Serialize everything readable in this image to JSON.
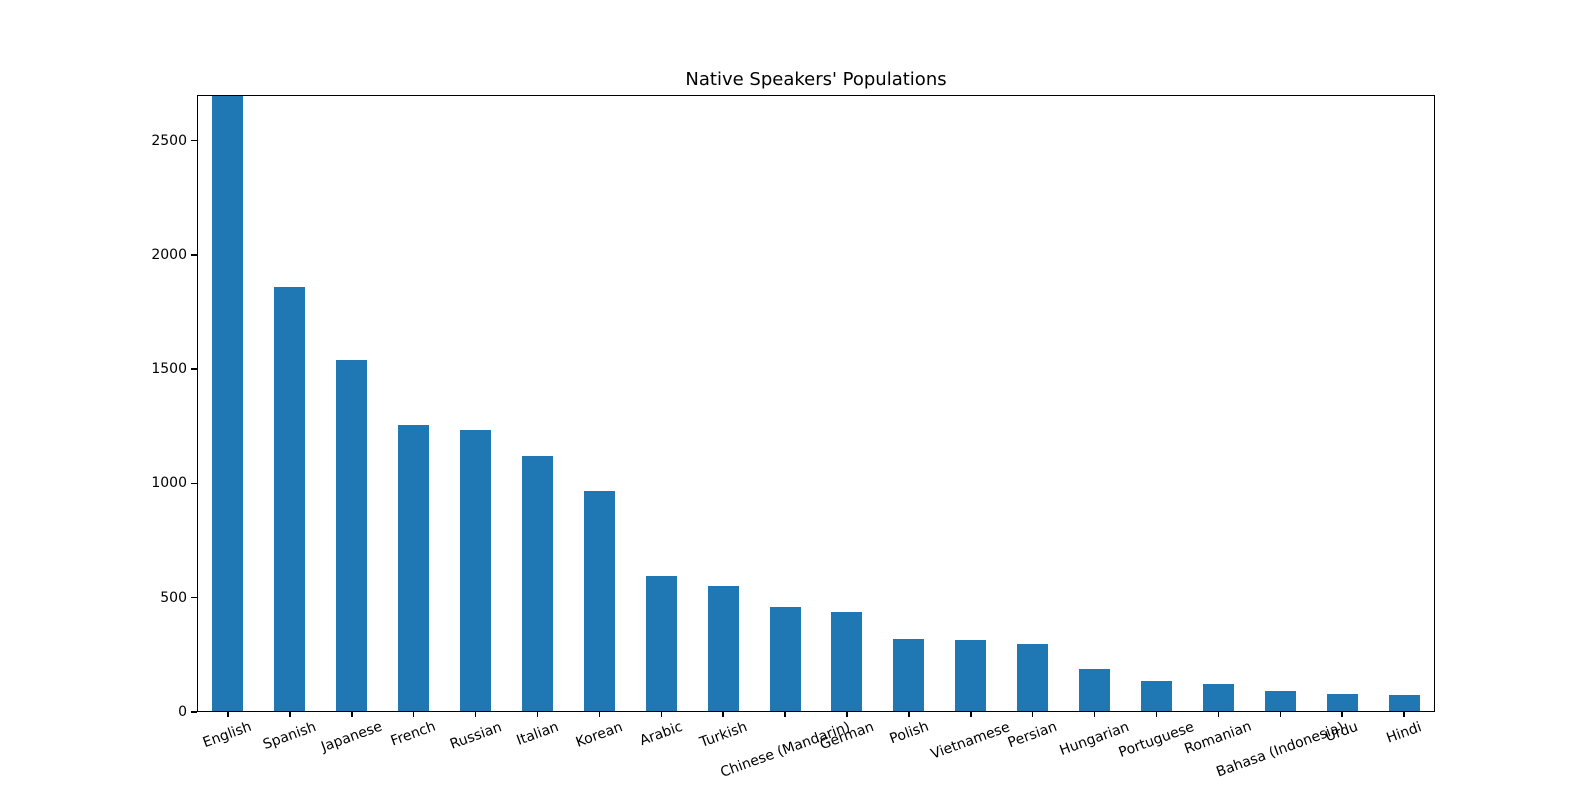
{
  "chart_data": {
    "type": "bar",
    "title": "Native Speakers' Populations",
    "categories": [
      "English",
      "Spanish",
      "Japanese",
      "French",
      "Russian",
      "Italian",
      "Korean",
      "Arabic",
      "Turkish",
      "Chinese (Mandarin)",
      "German",
      "Polish",
      "Vietnamese",
      "Persian",
      "Hungarian",
      "Portuguese",
      "Romanian",
      "Bahasa (Indonesia)",
      "Urdu",
      "Hindi"
    ],
    "values": [
      2700,
      1862,
      1540,
      1255,
      1236,
      1121,
      969,
      597,
      553,
      461,
      436,
      320,
      314,
      297,
      188,
      137,
      124,
      93,
      79,
      76
    ],
    "bar_color": "#1f77b4",
    "xlabel": "",
    "ylabel": "",
    "ylim": [
      0,
      2700
    ],
    "yticks": [
      0,
      500,
      1000,
      1500,
      2000,
      2500
    ],
    "ytick_labels": [
      "0",
      "500",
      "1000",
      "1500",
      "2000",
      "2500"
    ],
    "xtick_rotation_deg": 20,
    "bar_rel_width": 0.5,
    "grid": false,
    "legend": null,
    "note": "First bar (English) is clipped at the top of the axis (reaches ylim max 2700)"
  }
}
